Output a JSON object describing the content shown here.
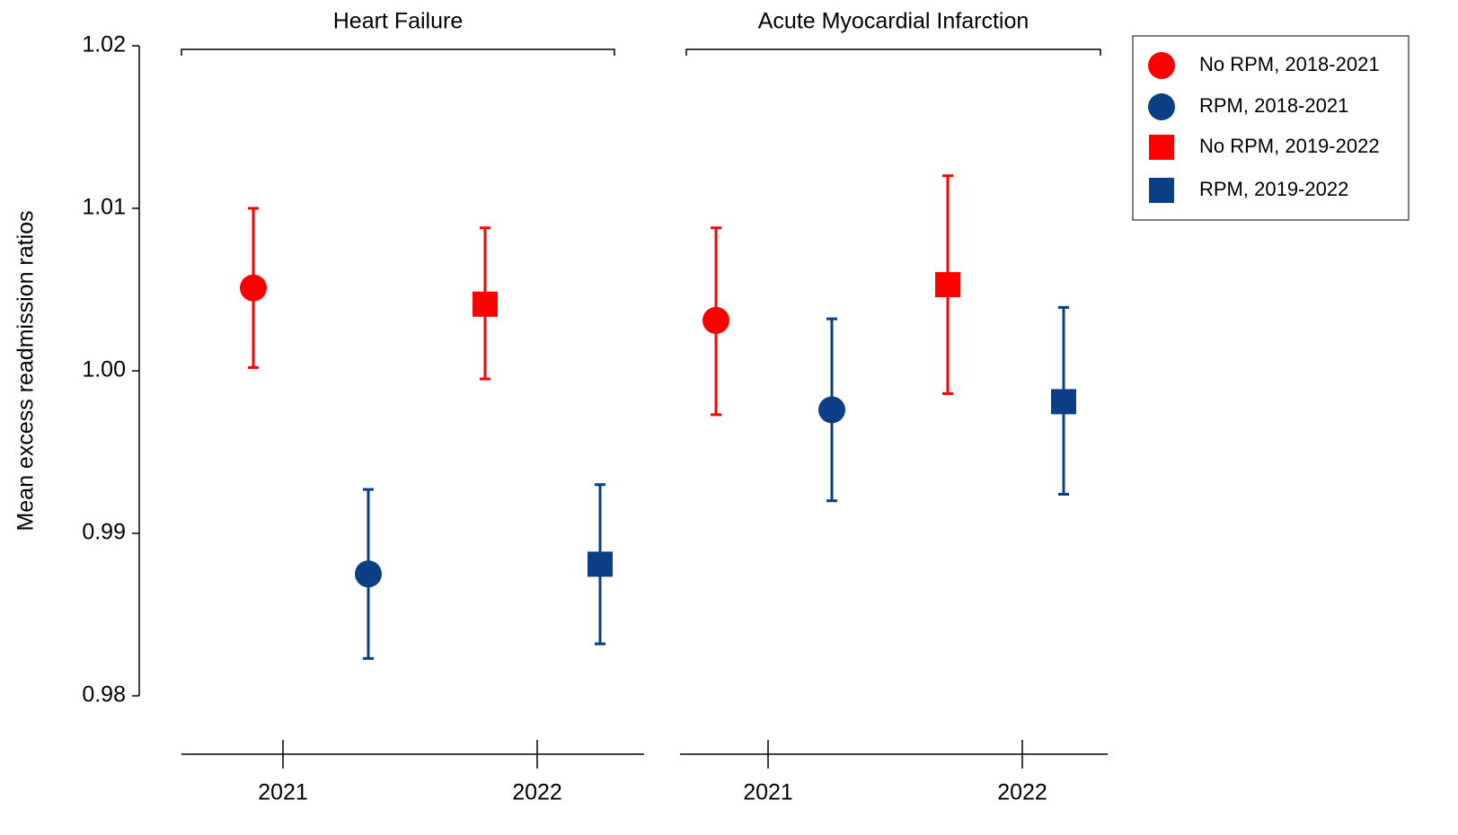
{
  "chart_data": {
    "type": "errorbar",
    "ylabel": "Mean excess readmission ratios",
    "ylim": [
      0.98,
      1.02
    ],
    "yticks": [
      0.98,
      0.99,
      {
        "value": 1.0,
        "label": "1.00"
      },
      1.01,
      1.02
    ],
    "panels": [
      {
        "title": "Heart Failure",
        "categories": [
          "2021",
          "2022"
        ]
      },
      {
        "title": "Acute Myocardial Infarction",
        "categories": [
          "2021",
          "2022"
        ]
      }
    ],
    "series": [
      {
        "name": "No RPM, 2018-2021",
        "color": "#ff0000",
        "marker": "circle",
        "values": [
          1.0051,
          1.0031
        ],
        "lower": [
          1.0002,
          0.9973
        ],
        "upper": [
          1.01,
          1.0088
        ]
      },
      {
        "name": "RPM, 2018-2021",
        "color": "#0b3f85",
        "marker": "circle",
        "values": [
          0.9875,
          0.9976
        ],
        "lower": [
          0.9823,
          0.992
        ],
        "upper": [
          0.9927,
          1.0032
        ]
      },
      {
        "name": "No RPM, 2019-2022",
        "color": "#ff0000",
        "marker": "square",
        "values": [
          1.0041,
          1.0053
        ],
        "lower": [
          0.9995,
          0.9986
        ],
        "upper": [
          1.0088,
          1.012
        ]
      },
      {
        "name": "RPM, 2019-2022",
        "color": "#0b3f85",
        "marker": "square",
        "values": [
          0.9881,
          0.9981
        ],
        "lower": [
          0.9832,
          0.9924
        ],
        "upper": [
          0.993,
          1.0039
        ]
      }
    ]
  }
}
